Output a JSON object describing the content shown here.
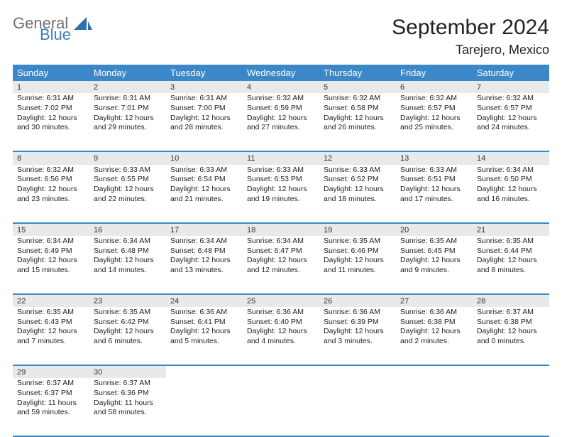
{
  "logo": {
    "word1": "General",
    "word2": "Blue"
  },
  "title": "September 2024",
  "location": "Tarejero, Mexico",
  "colors": {
    "header_bg": "#3b87c8",
    "header_fg": "#ffffff",
    "daynum_bg": "#e9e9e9",
    "rule": "#3b87c8",
    "logo_gray": "#6f6f6f",
    "logo_blue": "#3b7fbf",
    "background": "#ffffff"
  },
  "typography": {
    "title_fontsize": 30,
    "location_fontsize": 18,
    "header_fontsize": 13,
    "body_fontsize": 10.5,
    "font_family": "Arial"
  },
  "weekday_headers": [
    "Sunday",
    "Monday",
    "Tuesday",
    "Wednesday",
    "Thursday",
    "Friday",
    "Saturday"
  ],
  "weeks": [
    [
      {
        "n": "1",
        "sr": "6:31 AM",
        "ss": "7:02 PM",
        "dl": "12 hours and 30 minutes."
      },
      {
        "n": "2",
        "sr": "6:31 AM",
        "ss": "7:01 PM",
        "dl": "12 hours and 29 minutes."
      },
      {
        "n": "3",
        "sr": "6:31 AM",
        "ss": "7:00 PM",
        "dl": "12 hours and 28 minutes."
      },
      {
        "n": "4",
        "sr": "6:32 AM",
        "ss": "6:59 PM",
        "dl": "12 hours and 27 minutes."
      },
      {
        "n": "5",
        "sr": "6:32 AM",
        "ss": "6:58 PM",
        "dl": "12 hours and 26 minutes."
      },
      {
        "n": "6",
        "sr": "6:32 AM",
        "ss": "6:57 PM",
        "dl": "12 hours and 25 minutes."
      },
      {
        "n": "7",
        "sr": "6:32 AM",
        "ss": "6:57 PM",
        "dl": "12 hours and 24 minutes."
      }
    ],
    [
      {
        "n": "8",
        "sr": "6:32 AM",
        "ss": "6:56 PM",
        "dl": "12 hours and 23 minutes."
      },
      {
        "n": "9",
        "sr": "6:33 AM",
        "ss": "6:55 PM",
        "dl": "12 hours and 22 minutes."
      },
      {
        "n": "10",
        "sr": "6:33 AM",
        "ss": "6:54 PM",
        "dl": "12 hours and 21 minutes."
      },
      {
        "n": "11",
        "sr": "6:33 AM",
        "ss": "6:53 PM",
        "dl": "12 hours and 19 minutes."
      },
      {
        "n": "12",
        "sr": "6:33 AM",
        "ss": "6:52 PM",
        "dl": "12 hours and 18 minutes."
      },
      {
        "n": "13",
        "sr": "6:33 AM",
        "ss": "6:51 PM",
        "dl": "12 hours and 17 minutes."
      },
      {
        "n": "14",
        "sr": "6:34 AM",
        "ss": "6:50 PM",
        "dl": "12 hours and 16 minutes."
      }
    ],
    [
      {
        "n": "15",
        "sr": "6:34 AM",
        "ss": "6:49 PM",
        "dl": "12 hours and 15 minutes."
      },
      {
        "n": "16",
        "sr": "6:34 AM",
        "ss": "6:48 PM",
        "dl": "12 hours and 14 minutes."
      },
      {
        "n": "17",
        "sr": "6:34 AM",
        "ss": "6:48 PM",
        "dl": "12 hours and 13 minutes."
      },
      {
        "n": "18",
        "sr": "6:34 AM",
        "ss": "6:47 PM",
        "dl": "12 hours and 12 minutes."
      },
      {
        "n": "19",
        "sr": "6:35 AM",
        "ss": "6:46 PM",
        "dl": "12 hours and 11 minutes."
      },
      {
        "n": "20",
        "sr": "6:35 AM",
        "ss": "6:45 PM",
        "dl": "12 hours and 9 minutes."
      },
      {
        "n": "21",
        "sr": "6:35 AM",
        "ss": "6:44 PM",
        "dl": "12 hours and 8 minutes."
      }
    ],
    [
      {
        "n": "22",
        "sr": "6:35 AM",
        "ss": "6:43 PM",
        "dl": "12 hours and 7 minutes."
      },
      {
        "n": "23",
        "sr": "6:35 AM",
        "ss": "6:42 PM",
        "dl": "12 hours and 6 minutes."
      },
      {
        "n": "24",
        "sr": "6:36 AM",
        "ss": "6:41 PM",
        "dl": "12 hours and 5 minutes."
      },
      {
        "n": "25",
        "sr": "6:36 AM",
        "ss": "6:40 PM",
        "dl": "12 hours and 4 minutes."
      },
      {
        "n": "26",
        "sr": "6:36 AM",
        "ss": "6:39 PM",
        "dl": "12 hours and 3 minutes."
      },
      {
        "n": "27",
        "sr": "6:36 AM",
        "ss": "6:38 PM",
        "dl": "12 hours and 2 minutes."
      },
      {
        "n": "28",
        "sr": "6:37 AM",
        "ss": "6:38 PM",
        "dl": "12 hours and 0 minutes."
      }
    ],
    [
      {
        "n": "29",
        "sr": "6:37 AM",
        "ss": "6:37 PM",
        "dl": "11 hours and 59 minutes."
      },
      {
        "n": "30",
        "sr": "6:37 AM",
        "ss": "6:36 PM",
        "dl": "11 hours and 58 minutes."
      },
      null,
      null,
      null,
      null,
      null
    ]
  ],
  "labels": {
    "sunrise": "Sunrise:",
    "sunset": "Sunset:",
    "daylight": "Daylight:"
  }
}
